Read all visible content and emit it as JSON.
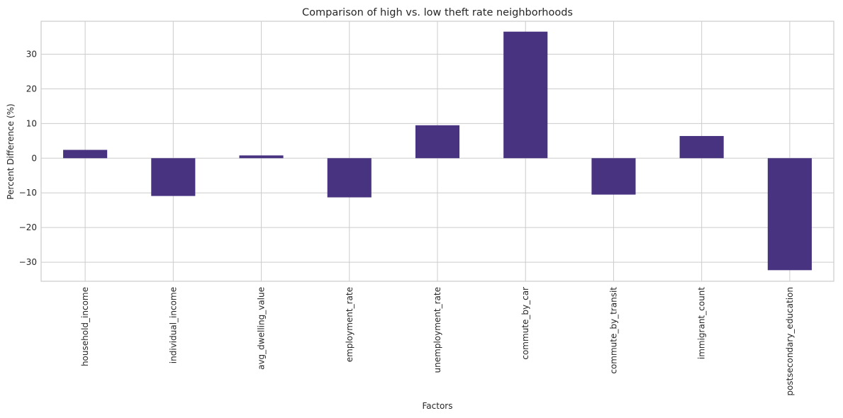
{
  "chart_data": {
    "type": "bar",
    "title": "Comparison of high vs. low theft rate neighborhoods",
    "xlabel": "Factors",
    "ylabel": "Percent Difference (%)",
    "categories": [
      "household_income",
      "individual_income",
      "avg_dwelling_value",
      "employment_rate",
      "unemployment_rate",
      "commute_by_car",
      "commute_by_transit",
      "immigrant_count",
      "postsecondary_education"
    ],
    "values": [
      2.4,
      -10.9,
      0.8,
      -11.3,
      9.5,
      36.5,
      -10.5,
      6.4,
      -32.3
    ],
    "ylim": [
      -35.5,
      39.5
    ],
    "yticks": [
      -30,
      -20,
      -10,
      0,
      10,
      20,
      30
    ],
    "ytick_labels": [
      "−30",
      "−20",
      "−10",
      "0",
      "10",
      "20",
      "30"
    ],
    "bar_color": "#483380",
    "grid": true,
    "legend": "none"
  }
}
